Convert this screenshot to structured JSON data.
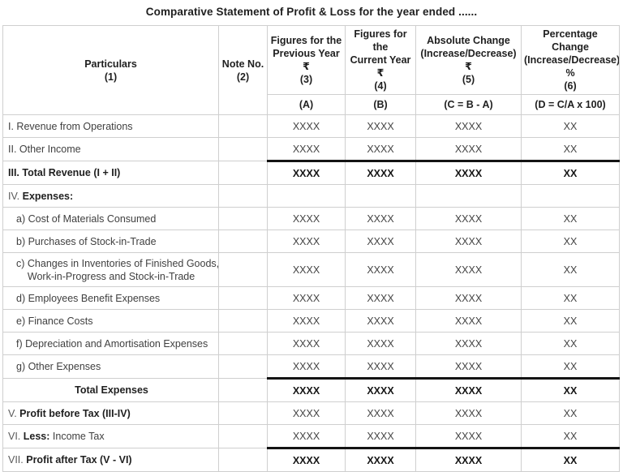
{
  "title": "Comparative Statement of Profit & Loss for the year ended ......",
  "table": {
    "header": {
      "particulars": [
        "Particulars",
        "(1)"
      ],
      "note": [
        "Note No.",
        "(2)"
      ],
      "prev_year": [
        "Figures for the",
        "Previous Year",
        "₹",
        "(3)"
      ],
      "curr_year": [
        "Figures for the",
        "Current Year",
        "₹",
        "(4)"
      ],
      "abs_change": [
        "Absolute Change",
        "(Increase/Decrease)",
        "₹",
        "(5)"
      ],
      "pct_change": [
        "Percentage Change",
        "(Increase/Decrease)",
        "%",
        "(6)"
      ],
      "sub": [
        "(A)",
        "(B)",
        "(C = B - A)",
        "(D = C/A x 100)"
      ]
    },
    "rows": [
      {
        "parts": [
          {
            "t": "I. Revenue from Operations"
          }
        ],
        "values": [
          "XXXX",
          "XXXX",
          "XXXX",
          "XX"
        ]
      },
      {
        "parts": [
          {
            "t": "II. Other Income"
          }
        ],
        "values": [
          "XXXX",
          "XXXX",
          "XXXX",
          "XX"
        ]
      },
      {
        "parts": [
          {
            "t": "III. Total Revenue (I + II)",
            "b": true
          }
        ],
        "values": [
          "XXXX",
          "XXXX",
          "XXXX",
          "XX"
        ],
        "bold_values": true,
        "thick": true
      },
      {
        "parts": [
          {
            "t": "IV. ",
            "m": true
          },
          {
            "t": "Expenses:",
            "b": true
          }
        ],
        "values": [
          "",
          "",
          "",
          ""
        ]
      },
      {
        "parts": [
          {
            "t": "a) Cost of Materials Consumed"
          }
        ],
        "indent": true,
        "values": [
          "XXXX",
          "XXXX",
          "XXXX",
          "XX"
        ]
      },
      {
        "parts": [
          {
            "t": "b) Purchases of Stock-in-Trade"
          }
        ],
        "indent": true,
        "values": [
          "XXXX",
          "XXXX",
          "XXXX",
          "XX"
        ]
      },
      {
        "parts": [
          {
            "t": "c) Changes in Inventories of Finished Goods,\n    Work-in-Progress and Stock-in-Trade"
          }
        ],
        "indent": true,
        "pre": true,
        "tall": true,
        "values": [
          "XXXX",
          "XXXX",
          "XXXX",
          "XX"
        ]
      },
      {
        "parts": [
          {
            "t": "d) Employees Benefit Expenses"
          }
        ],
        "indent": true,
        "values": [
          "XXXX",
          "XXXX",
          "XXXX",
          "XX"
        ]
      },
      {
        "parts": [
          {
            "t": "e) Finance Costs"
          }
        ],
        "indent": true,
        "values": [
          "XXXX",
          "XXXX",
          "XXXX",
          "XX"
        ]
      },
      {
        "parts": [
          {
            "t": "f) Depreciation and Amortisation Expenses"
          }
        ],
        "indent": true,
        "values": [
          "XXXX",
          "XXXX",
          "XXXX",
          "XX"
        ]
      },
      {
        "parts": [
          {
            "t": "g) Other Expenses"
          }
        ],
        "indent": true,
        "values": [
          "XXXX",
          "XXXX",
          "XXXX",
          "XX"
        ]
      },
      {
        "parts": [
          {
            "t": "Total Expenses",
            "b": true
          }
        ],
        "center": true,
        "values": [
          "XXXX",
          "XXXX",
          "XXXX",
          "XX"
        ],
        "bold_values": true,
        "thick": true
      },
      {
        "parts": [
          {
            "t": "V. ",
            "m": true
          },
          {
            "t": "Profit before Tax (III-IV)",
            "b": true
          }
        ],
        "values": [
          "XXXX",
          "XXXX",
          "XXXX",
          "XX"
        ]
      },
      {
        "parts": [
          {
            "t": "VI. ",
            "m": true
          },
          {
            "t": "Less:",
            "b": true
          },
          {
            "t": " Income Tax"
          }
        ],
        "values": [
          "XXXX",
          "XXXX",
          "XXXX",
          "XX"
        ]
      },
      {
        "parts": [
          {
            "t": "VII. ",
            "m": true
          },
          {
            "t": "Profit after Tax (V - VI)",
            "b": true
          }
        ],
        "values": [
          "XXXX",
          "XXXX",
          "XXXX",
          "XX"
        ],
        "bold_values": true,
        "thick": true
      }
    ]
  }
}
